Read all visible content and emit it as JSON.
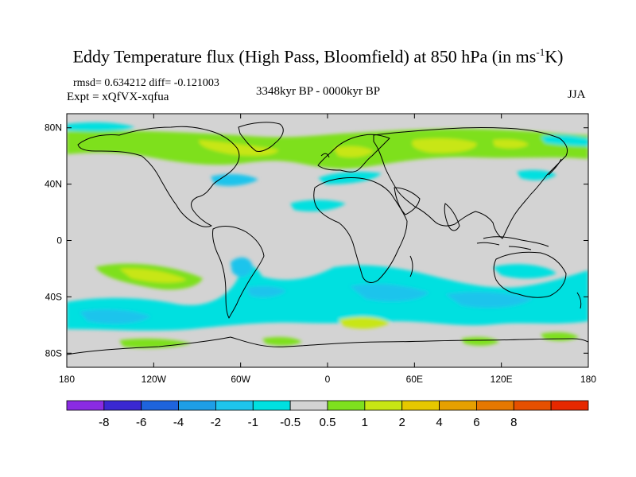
{
  "title": {
    "main": "Eddy Temperature flux (High Pass, Bloomfield) at 850 hPa (in ms",
    "sup": "-1",
    "tail": "K)"
  },
  "stats": "rmsd= 0.634212 diff= -0.121003",
  "experiment": "Expt = xQfVX-xqfua",
  "period": "3348kyr BP - 0000kyr BP",
  "season": "JJA",
  "map": {
    "lon_range": [
      -180,
      180
    ],
    "lat_range": [
      -90,
      90
    ],
    "x_ticks": [
      {
        "lon": -180,
        "label": "180"
      },
      {
        "lon": -120,
        "label": "120W"
      },
      {
        "lon": -60,
        "label": "60W"
      },
      {
        "lon": 0,
        "label": "0"
      },
      {
        "lon": 60,
        "label": "60E"
      },
      {
        "lon": 120,
        "label": "120E"
      },
      {
        "lon": 180,
        "label": "180"
      }
    ],
    "y_ticks": [
      {
        "lat": 80,
        "label": "80N"
      },
      {
        "lat": 40,
        "label": "40N"
      },
      {
        "lat": 0,
        "label": "0"
      },
      {
        "lat": -40,
        "label": "40S"
      },
      {
        "lat": -80,
        "label": "80S"
      }
    ],
    "background_color": "#d3d3d3",
    "coastline_color": "#000000"
  },
  "colorbar": {
    "colors": [
      "#8a2be2",
      "#3a28d2",
      "#1e64dc",
      "#1e9ee6",
      "#1ec4ec",
      "#00e0e0",
      "#d3d3d3",
      "#7ee01e",
      "#c8e614",
      "#e6c800",
      "#e6a000",
      "#e67800",
      "#e65000",
      "#e62800"
    ],
    "labels": [
      "-8",
      "-6",
      "-4",
      "-2",
      "-1",
      "-0.5",
      "0.5",
      "1",
      "2",
      "4",
      "6",
      "8"
    ]
  }
}
